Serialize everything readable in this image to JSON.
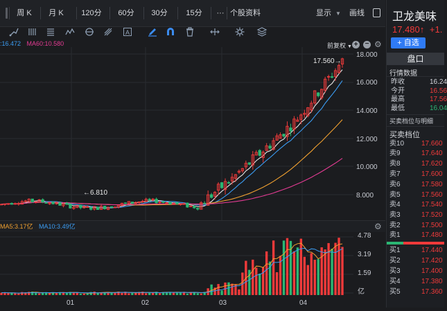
{
  "toolbar": {
    "periods": [
      "周 K",
      "月 K",
      "120分",
      "60分",
      "30分",
      "15分"
    ],
    "more": "···",
    "tab_profile": "个股资料",
    "display_label": "显示",
    "draw_label": "画线"
  },
  "chart": {
    "ma_labels": [
      ":16.472",
      "MA60:10.580"
    ],
    "fq_label": "前复权",
    "price_ticks": [
      "18.000",
      "16.000",
      "14.000",
      "12.000",
      "10.000",
      "8.000"
    ],
    "high_label": "17.560→",
    "low_label": "←6.810"
  },
  "volume": {
    "ma_labels": [
      "MA5:3.17亿",
      "MA10:3.49亿"
    ],
    "ticks": [
      "4.78",
      "3.19",
      "1.59",
      "亿"
    ],
    "months": [
      "01",
      "02",
      "03",
      "04"
    ]
  },
  "stock": {
    "name": "卫龙美味",
    "price": "17.480↑",
    "change": "+1.",
    "add_button": "+ 自选"
  },
  "panel": {
    "tab": "盘口",
    "quote_title": "行情数据",
    "quotes": [
      {
        "label": "昨收",
        "value": "16.24"
      },
      {
        "label": "今开",
        "value": "16.56"
      },
      {
        "label": "最高",
        "value": "17.56"
      },
      {
        "label": "最低",
        "value": "16.04"
      }
    ],
    "orderbook_title": "买卖档位与明细",
    "levels_title": "买卖档位",
    "asks": [
      {
        "label": "卖10",
        "price": "17.660"
      },
      {
        "label": "卖9",
        "price": "17.640"
      },
      {
        "label": "卖8",
        "price": "17.620"
      },
      {
        "label": "卖7",
        "price": "17.600"
      },
      {
        "label": "卖6",
        "price": "17.580"
      },
      {
        "label": "卖5",
        "price": "17.560"
      },
      {
        "label": "卖4",
        "price": "17.540"
      },
      {
        "label": "卖3",
        "price": "17.520"
      },
      {
        "label": "卖2",
        "price": "17.500"
      },
      {
        "label": "卖1",
        "price": "17.480"
      }
    ],
    "bids": [
      {
        "label": "买1",
        "price": "17.440"
      },
      {
        "label": "买2",
        "price": "17.420"
      },
      {
        "label": "买3",
        "price": "17.400"
      },
      {
        "label": "买4",
        "price": "17.380"
      },
      {
        "label": "买5",
        "price": "17.360"
      }
    ]
  },
  "colors": {
    "up": "#ef3a3a",
    "down": "#2bb673",
    "accent": "#2f7bf5",
    "ma5": "#e6e6e6",
    "ma10": "#3b9cf2",
    "ma30": "#f0a030",
    "ma60": "#e43b93"
  }
}
